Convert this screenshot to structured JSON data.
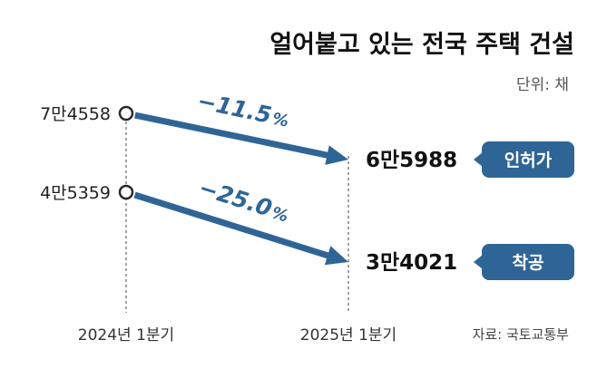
{
  "chart_data": {
    "type": "line",
    "title": "얼어붙고 있는 전국 주택 건설",
    "unit_label": "단위: 채",
    "categories": [
      "2024년 1분기",
      "2025년 1분기"
    ],
    "series": [
      {
        "name": "인허가",
        "values": [
          74558,
          65988
        ],
        "value_labels": [
          "7만4558",
          "6만5988"
        ],
        "change_label": "−11.5",
        "change_unit": "%",
        "color": "#2f6596"
      },
      {
        "name": "착공",
        "values": [
          45359,
          34021
        ],
        "value_labels": [
          "4만5359",
          "3만4021"
        ],
        "change_label": "−25.0",
        "change_unit": "%",
        "color": "#2f6596"
      }
    ],
    "source": "자료: 국토교통부"
  }
}
